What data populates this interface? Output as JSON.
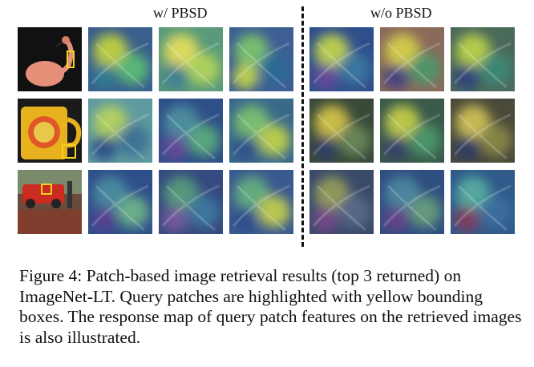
{
  "figure": {
    "header_left": "w/ PBSD",
    "header_right": "w/o PBSD",
    "rows": [
      {
        "query": {
          "kind": "flamingo",
          "bg": "#111111",
          "accent": "#e6907a"
        },
        "with": [
          {
            "kind": "heat",
            "base": "#3a5f8c",
            "blobs": [
              "#c8d63a",
              "#5bbf74",
              "#2f7d8f"
            ]
          },
          {
            "kind": "heat",
            "base": "#5a9a7a",
            "blobs": [
              "#e8e05a",
              "#b5d65a",
              "#3f7d93"
            ]
          },
          {
            "kind": "heat",
            "base": "#3e5f92",
            "blobs": [
              "#7ec86b",
              "#2a6b95",
              "#c9d94a"
            ]
          }
        ],
        "without": [
          {
            "kind": "heat",
            "base": "#2f4f8c",
            "blobs": [
              "#c9d94a",
              "#3b7aa0",
              "#6a4a9a"
            ]
          },
          {
            "kind": "heat",
            "base": "#8a6a5a",
            "blobs": [
              "#d7d34a",
              "#4a9a6a",
              "#3d3f86"
            ]
          },
          {
            "kind": "heat",
            "base": "#4a6a5a",
            "blobs": [
              "#bfd548",
              "#3a8a78",
              "#2f3f82"
            ]
          }
        ]
      },
      {
        "query": {
          "kind": "mug",
          "bg": "#1a1a1a",
          "accent": "#e7b21e"
        },
        "with": [
          {
            "kind": "heat",
            "base": "#5f9aa0",
            "blobs": [
              "#b9d45a",
              "#3a6e94",
              "#2b4b86"
            ]
          },
          {
            "kind": "heat",
            "base": "#2e4f88",
            "blobs": [
              "#4f93a0",
              "#5cb07c",
              "#6b4a9a"
            ]
          },
          {
            "kind": "heat",
            "base": "#3a6a8a",
            "blobs": [
              "#7fc46e",
              "#c5d54a",
              "#2f4f88"
            ]
          }
        ],
        "without": [
          {
            "kind": "heat",
            "base": "#3a4a3a",
            "blobs": [
              "#d9c84a",
              "#6a8a5a",
              "#2f3f6a"
            ]
          },
          {
            "kind": "heat",
            "base": "#3a5a4a",
            "blobs": [
              "#c9d14a",
              "#4e9a6e",
              "#3a3f70"
            ]
          },
          {
            "kind": "heat",
            "base": "#4a4a3a",
            "blobs": [
              "#d6c55a",
              "#8a8a4a",
              "#2f3a6a"
            ]
          }
        ]
      },
      {
        "query": {
          "kind": "street",
          "bg": "#6a4a3a",
          "accent": "#cc2b22"
        },
        "with": [
          {
            "kind": "heat",
            "base": "#2f4f8a",
            "blobs": [
              "#4b8fa0",
              "#6fb88a",
              "#5a3f90"
            ]
          },
          {
            "kind": "heat",
            "base": "#354a80",
            "blobs": [
              "#5aa07a",
              "#3e7aa0",
              "#7b5aa0"
            ]
          },
          {
            "kind": "heat",
            "base": "#3a5a8f",
            "blobs": [
              "#66b47e",
              "#c8d24a",
              "#2e4d8a"
            ]
          }
        ],
        "without": [
          {
            "kind": "heat",
            "base": "#3a4a6a",
            "blobs": [
              "#9aa05a",
              "#5a6a8a",
              "#7a4a8a"
            ]
          },
          {
            "kind": "heat",
            "base": "#2f4f80",
            "blobs": [
              "#4e8aa0",
              "#6aa07a",
              "#6b3f8a"
            ]
          },
          {
            "kind": "heat",
            "base": "#2f5a8a",
            "blobs": [
              "#5ab0a0",
              "#3c6f9f",
              "#8a3a5a"
            ]
          }
        ]
      }
    ]
  },
  "caption": "Figure 4: Patch-based image retrieval results (top 3 returned) on ImageNet-LT. Query patches are highlighted with yellow bounding boxes. The response map of query patch features on the retrieved images is also illustrated.",
  "highlight_color": "#f2d21a"
}
